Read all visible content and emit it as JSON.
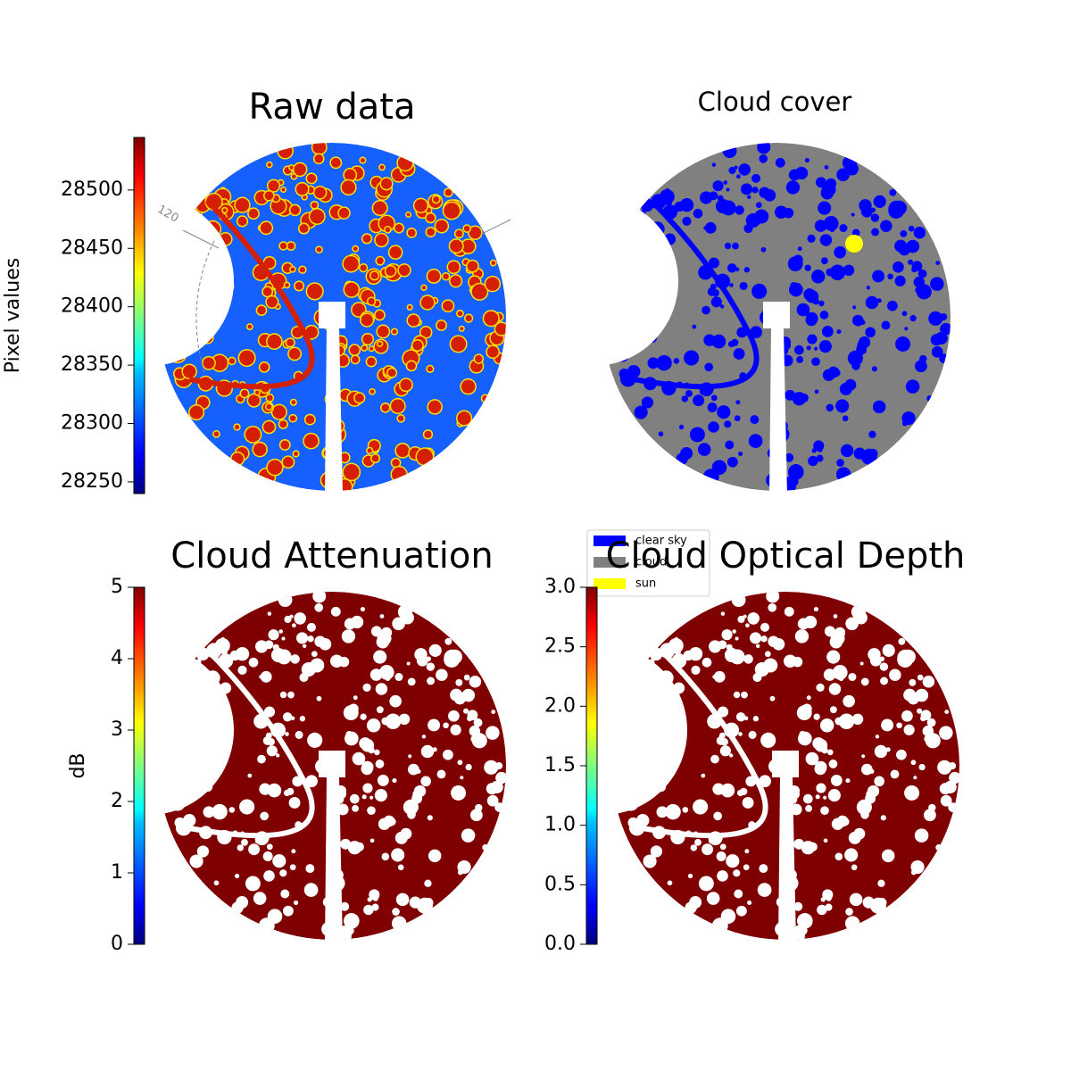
{
  "chart_data": [
    {
      "type": "image",
      "title": "Raw data",
      "colorbar_label": "Pixel values",
      "colormap": "jet",
      "ylim": [
        28240,
        28545
      ],
      "yticks": [
        28250,
        28300,
        28350,
        28400,
        28450,
        28500
      ],
      "annotations": [
        "120"
      ]
    },
    {
      "type": "image",
      "title": "Cloud cover",
      "series": [
        {
          "name": "clear sky",
          "color": "#0000ff"
        },
        {
          "name": "cloud",
          "color": "#808080"
        },
        {
          "name": "sun",
          "color": "#ffff00"
        }
      ]
    },
    {
      "type": "image",
      "title": "Cloud Attenuation",
      "colorbar_label": "dB",
      "colormap": "jet",
      "ylim": [
        0,
        5
      ],
      "yticks": [
        0,
        1,
        2,
        3,
        4,
        5
      ]
    },
    {
      "type": "image",
      "title": "Cloud Optical Depth",
      "colormap": "jet",
      "ylim": [
        0,
        3
      ],
      "yticks": [
        {
          "value": 0,
          "label": "0.0"
        },
        0.5,
        {
          "value": 1,
          "label": "1.0"
        },
        1.5,
        {
          "value": 2,
          "label": "2.0"
        },
        2.5,
        {
          "value": 3,
          "label": "3.0"
        }
      ]
    }
  ]
}
